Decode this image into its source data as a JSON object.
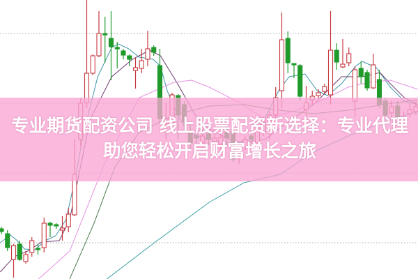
{
  "title": "专业期货配资公司 线上股票配资新选择：专业代理助您轻松开启财富增长之旅",
  "colors": {
    "up": "#c8383f",
    "down": "#1f9a2b",
    "banner": "#f8a5d4",
    "grid": "#aaaaaa"
  },
  "chart_data": {
    "type": "candlestick",
    "title": "",
    "xlabel": "",
    "ylabel": "",
    "ylim": [
      0,
      100
    ],
    "grid": "horizontal dotted",
    "legend": "none",
    "candles_ohlc": [
      [
        18,
        18.75,
        16,
        17
      ],
      [
        16.25,
        17.5,
        10,
        11.25
      ],
      [
        7,
        12.5,
        0.5,
        12
      ],
      [
        12.5,
        13.75,
        6.5,
        7
      ],
      [
        6.25,
        10,
        5.5,
        8.75
      ],
      [
        9.5,
        15,
        8,
        13.75
      ],
      [
        11,
        12.5,
        8.75,
        10.5
      ],
      [
        11.25,
        22,
        9.5,
        20
      ],
      [
        20,
        20.5,
        15,
        19.25
      ],
      [
        19.5,
        20,
        18,
        19
      ],
      [
        17.5,
        22.5,
        13.75,
        18.25
      ],
      [
        18.75,
        25.5,
        16.75,
        23.25
      ],
      [
        23,
        50,
        22.5,
        37.5
      ],
      [
        50,
        65,
        47.5,
        63
      ],
      [
        63.25,
        100,
        61.25,
        73.75
      ],
      [
        73.75,
        80.5,
        73,
        80
      ],
      [
        80,
        96,
        79.5,
        88
      ],
      [
        88,
        94,
        77.5,
        87.5
      ],
      [
        86.25,
        96,
        71.25,
        83.25
      ],
      [
        83,
        85,
        75.5,
        82.5
      ],
      [
        81.75,
        82.5,
        78.75,
        80.25
      ],
      [
        80,
        80.5,
        76.25,
        78.75
      ],
      [
        74.75,
        79.25,
        68.25,
        75.75
      ],
      [
        75.5,
        82.5,
        73.75,
        78.25
      ],
      [
        78.75,
        89,
        76.25,
        82.5
      ],
      [
        83,
        83.75,
        80,
        81.25
      ],
      [
        76.5,
        82.5,
        56.25,
        57.5
      ],
      [
        55.5,
        63,
        50,
        57.5
      ],
      [
        55.5,
        66.75,
        55,
        66
      ],
      [
        65.75,
        66.25,
        50,
        58.75
      ],
      [
        62.5,
        63.75,
        52.5,
        56.25
      ],
      [
        52.5,
        55,
        46.25,
        48.75
      ],
      [
        51.5,
        53.75,
        47.5,
        50.5
      ],
      [
        48.75,
        53.75,
        47.5,
        51.25
      ],
      [
        52,
        54.5,
        48,
        50
      ],
      [
        49.25,
        52.5,
        47,
        50.5
      ],
      [
        48.25,
        53,
        46.25,
        50.75
      ],
      [
        52.5,
        55,
        47.5,
        50.5
      ],
      [
        53,
        55,
        42,
        43
      ],
      [
        45,
        48.75,
        41.25,
        47.5
      ],
      [
        47.5,
        51.25,
        46.25,
        50
      ],
      [
        51.25,
        52.5,
        47.5,
        50
      ],
      [
        48.75,
        55,
        47.5,
        53.75
      ],
      [
        52.5,
        57.5,
        51.25,
        56.25
      ],
      [
        55,
        60,
        50,
        58.75
      ],
      [
        58.75,
        68.75,
        57.5,
        65
      ],
      [
        67.5,
        95.5,
        61.25,
        85.75
      ],
      [
        86.25,
        88.75,
        73.75,
        77.5
      ],
      [
        77.25,
        77.25,
        72,
        76.75
      ],
      [
        76.5,
        77,
        63.75,
        65.5
      ],
      [
        60.75,
        69.25,
        58,
        63.25
      ],
      [
        64.25,
        67.5,
        62.5,
        65.5
      ],
      [
        65.75,
        68,
        64.5,
        66.75
      ],
      [
        67.25,
        70,
        66.25,
        69
      ],
      [
        66,
        96,
        62.5,
        82
      ],
      [
        82,
        84.5,
        75,
        77.75
      ],
      [
        76,
        86,
        75.5,
        77
      ],
      [
        77.5,
        83,
        76.25,
        80.75
      ],
      [
        63.75,
        76.25,
        58,
        75
      ],
      [
        75.5,
        78,
        70,
        72.5
      ],
      [
        74,
        75,
        67.5,
        68.5
      ],
      [
        68.5,
        80.75,
        68,
        76.75
      ],
      [
        71.5,
        75,
        61.25,
        62.5
      ],
      [
        63.75,
        65,
        57.5,
        58.75
      ],
      [
        59.5,
        63.75,
        57.5,
        61.75
      ],
      [
        62,
        63.75,
        56.25,
        57.5
      ],
      [
        55,
        60,
        54.25,
        57.75
      ],
      [
        59.25,
        63,
        58,
        60.75
      ],
      [
        60,
        63.75,
        58.75,
        61.75
      ]
    ],
    "moving_averages": [
      {
        "color": "#3d96a6",
        "points": [
          [
            -0.2,
            13
          ],
          [
            1.5,
            15.75
          ],
          [
            2.6,
            13.75
          ],
          [
            3.8,
            10.75
          ],
          [
            5.5,
            10.5
          ],
          [
            7.2,
            13.75
          ],
          [
            8.9,
            15.5
          ],
          [
            10.6,
            21.25
          ],
          [
            12,
            35
          ],
          [
            13.5,
            52.5
          ],
          [
            15.8,
            72.5
          ],
          [
            18.1,
            83
          ],
          [
            19.2,
            84.25
          ],
          [
            20.9,
            82.5
          ],
          [
            22.6,
            79.5
          ],
          [
            24.9,
            78.75
          ],
          [
            26.1,
            76.25
          ],
          [
            27.2,
            67.5
          ],
          [
            28.9,
            58.75
          ],
          [
            30.6,
            52.5
          ],
          [
            34,
            50
          ],
          [
            37.5,
            48.75
          ],
          [
            40.9,
            50
          ],
          [
            43.2,
            57.5
          ],
          [
            45.5,
            67.5
          ],
          [
            47.2,
            72.5
          ],
          [
            49.8,
            73.5
          ],
          [
            51.8,
            67.5
          ],
          [
            53.5,
            65.75
          ],
          [
            55.8,
            70
          ],
          [
            58.1,
            76.25
          ],
          [
            59.2,
            78
          ],
          [
            61.5,
            75.75
          ],
          [
            63.8,
            68.75
          ],
          [
            66.1,
            63.75
          ],
          [
            68.3,
            62.5
          ]
        ]
      },
      {
        "color": "#6b3a6e",
        "points": [
          [
            -0.2,
            2.5
          ],
          [
            2.1,
            8
          ],
          [
            4.3,
            10
          ],
          [
            6.6,
            13.25
          ],
          [
            9.5,
            13.75
          ],
          [
            11.2,
            21.25
          ],
          [
            14.6,
            57.5
          ],
          [
            18.1,
            72.5
          ],
          [
            21.5,
            78.75
          ],
          [
            24.3,
            82
          ],
          [
            26.1,
            80
          ],
          [
            28.9,
            70
          ],
          [
            31.8,
            58.75
          ],
          [
            34.1,
            53.75
          ],
          [
            38.6,
            48.75
          ],
          [
            43.2,
            50
          ],
          [
            47.8,
            57.5
          ],
          [
            51.2,
            62.5
          ],
          [
            55.8,
            72.5
          ],
          [
            59.2,
            72.5
          ],
          [
            62.1,
            74
          ],
          [
            63.8,
            70
          ],
          [
            66.1,
            65
          ],
          [
            68.3,
            62.5
          ]
        ]
      },
      {
        "color": "#e48fe0",
        "points": [
          [
            6.1,
            0
          ],
          [
            11.2,
            10
          ],
          [
            16.9,
            41.25
          ],
          [
            22.6,
            65
          ],
          [
            28.3,
            70.5
          ],
          [
            31.2,
            71.25
          ],
          [
            34.1,
            68.75
          ],
          [
            38.6,
            63.75
          ],
          [
            43.2,
            57.5
          ],
          [
            47.8,
            60
          ],
          [
            52.3,
            63.75
          ],
          [
            56.9,
            68.75
          ],
          [
            60.3,
            70.5
          ],
          [
            63.8,
            71.25
          ],
          [
            68.3,
            68
          ]
        ]
      },
      {
        "color": "#4d7a4d",
        "points": [
          [
            11.2,
            0
          ],
          [
            15.2,
            20
          ],
          [
            18.6,
            40
          ],
          [
            22.6,
            52.5
          ],
          [
            28.3,
            58.75
          ],
          [
            34.1,
            62
          ],
          [
            39.8,
            62.5
          ],
          [
            45.5,
            60.5
          ],
          [
            51.2,
            59.25
          ],
          [
            56.9,
            60.5
          ],
          [
            62.6,
            62.5
          ],
          [
            68.3,
            64.25
          ]
        ]
      },
      {
        "color": "#3aa0a4",
        "points": [
          [
            17.3,
            0
          ],
          [
            25.1,
            13
          ],
          [
            34.1,
            27.5
          ],
          [
            39.8,
            34.5
          ],
          [
            45.7,
            37.5
          ],
          [
            51.2,
            45.5
          ],
          [
            56.9,
            51.25
          ],
          [
            62.6,
            56.25
          ],
          [
            68.3,
            60
          ]
        ]
      }
    ],
    "gridlines": [
      88,
      63,
      38,
      13
    ]
  }
}
